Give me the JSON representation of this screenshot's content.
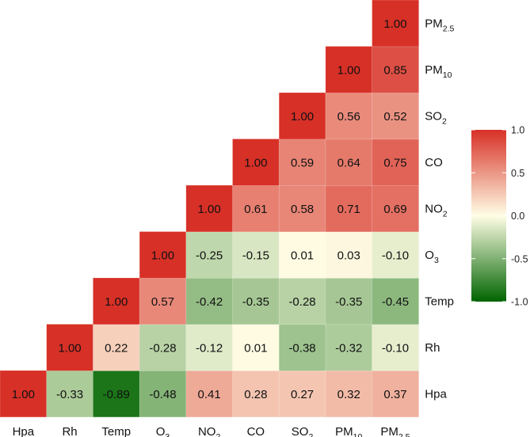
{
  "chart_data": {
    "type": "heatmap",
    "title": "",
    "variables": [
      {
        "base": "Hpa",
        "sub": ""
      },
      {
        "base": "Rh",
        "sub": ""
      },
      {
        "base": "Temp",
        "sub": ""
      },
      {
        "base": "O",
        "sub": "3"
      },
      {
        "base": "NO",
        "sub": "2"
      },
      {
        "base": "CO",
        "sub": ""
      },
      {
        "base": "SO",
        "sub": "2"
      },
      {
        "base": "PM",
        "sub": "10"
      },
      {
        "base": "PM",
        "sub": "2.5"
      }
    ],
    "matrix": [
      [
        1.0,
        -0.33,
        -0.89,
        -0.48,
        0.41,
        0.28,
        0.27,
        0.32,
        0.37
      ],
      [
        -0.33,
        1.0,
        0.22,
        -0.28,
        -0.12,
        0.01,
        -0.38,
        -0.32,
        -0.1
      ],
      [
        -0.89,
        0.22,
        1.0,
        0.57,
        -0.42,
        -0.35,
        -0.28,
        -0.35,
        -0.45
      ],
      [
        -0.48,
        -0.28,
        0.57,
        1.0,
        -0.25,
        -0.15,
        0.01,
        0.03,
        -0.1
      ],
      [
        0.41,
        -0.12,
        -0.42,
        -0.25,
        1.0,
        0.61,
        0.58,
        0.71,
        0.69
      ],
      [
        0.28,
        0.01,
        -0.35,
        -0.15,
        0.61,
        1.0,
        0.59,
        0.64,
        0.75
      ],
      [
        0.27,
        -0.38,
        -0.28,
        0.01,
        0.58,
        0.59,
        1.0,
        0.56,
        0.52
      ],
      [
        0.32,
        -0.32,
        -0.35,
        0.03,
        0.71,
        0.64,
        0.56,
        1.0,
        0.85
      ],
      [
        0.37,
        -0.1,
        -0.45,
        -0.1,
        0.69,
        0.75,
        0.52,
        0.85,
        1.0
      ]
    ],
    "triangle": "lower-left",
    "legend": {
      "position": "right",
      "ticks": [
        "1.0",
        "0.5",
        "0.0",
        "-0.5",
        "-1.0"
      ],
      "range": [
        -1,
        1
      ],
      "colors": {
        "high": "#d73027",
        "mid": "#fffde5",
        "low": "#006400"
      }
    },
    "grid": false
  }
}
